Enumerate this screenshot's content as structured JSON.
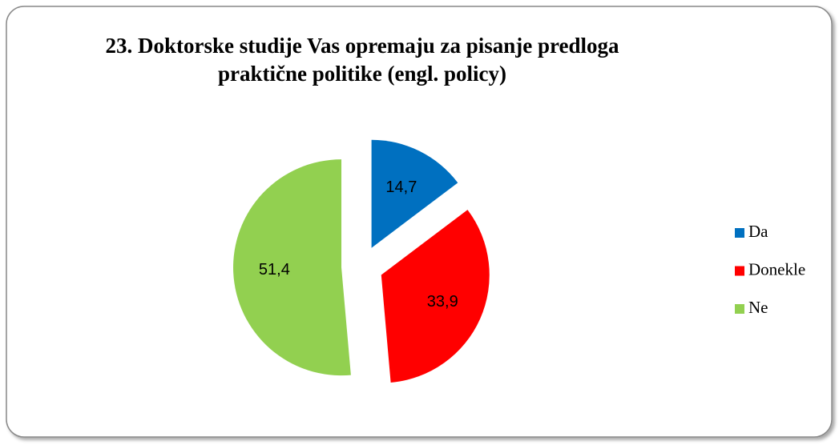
{
  "chart_data": {
    "type": "pie",
    "title": "23. Doktorske studije Vas opremaju za pisanje predloga",
    "subtitle": "praktične politike (engl. policy)",
    "categories": [
      "Da",
      "Donekle",
      "Ne"
    ],
    "values": [
      14.7,
      33.9,
      51.4
    ],
    "value_labels": [
      "14,7",
      "33,9",
      "51,4"
    ],
    "colors": [
      "#0070c0",
      "#ff0000",
      "#92d050"
    ],
    "legend": "right"
  }
}
